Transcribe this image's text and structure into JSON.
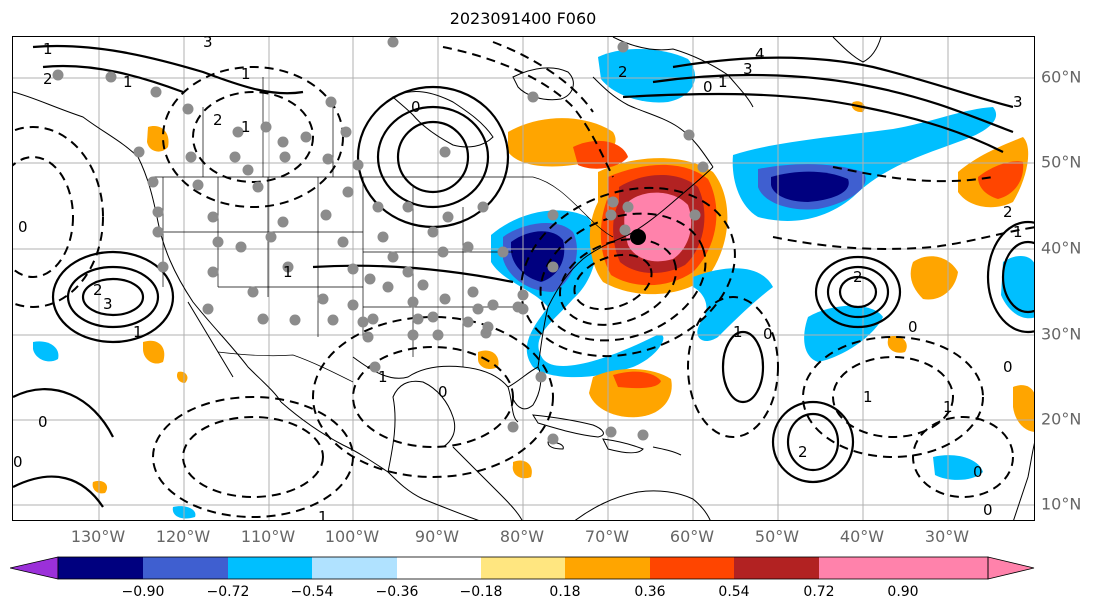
{
  "title": "2023091400 F060",
  "map": {
    "lat_labels": [
      "60°N",
      "50°N",
      "40°N",
      "30°N",
      "20°N",
      "10°N"
    ],
    "lon_labels": [
      "130°W",
      "120°W",
      "110°W",
      "100°W",
      "90°W",
      "80°W",
      "70°W",
      "60°W",
      "50°W",
      "40°W",
      "30°W"
    ],
    "center_marker": "storm-center-dot",
    "contour_labels": [
      "3",
      "4",
      "3",
      "2",
      "1",
      "0",
      "1",
      "1",
      "2",
      "1",
      "1",
      "2",
      "0",
      "0",
      "1",
      "2",
      "3",
      "2",
      "1",
      "0",
      "0",
      "0",
      "1",
      "1",
      "0",
      "0",
      "0",
      "1",
      "0",
      "2",
      "1",
      "1",
      "0",
      "1",
      "2",
      "3"
    ],
    "colors": {
      "land_line": "#000000",
      "grid": "#b0b0b0",
      "station_dot": "#8c8c8c"
    }
  },
  "colorbar": {
    "ticks": [
      "−0.90",
      "−0.72",
      "−0.54",
      "−0.36",
      "−0.18",
      "0.18",
      "0.36",
      "0.54",
      "0.72",
      "0.90"
    ],
    "colors": [
      "#9b30d9",
      "#00007f",
      "#3f5fd0",
      "#00bfff",
      "#b0e2ff",
      "#ffffff",
      "#ffe680",
      "#ffa500",
      "#ff4500",
      "#b22222",
      "#ff82ab",
      "#ff82ab"
    ]
  }
}
